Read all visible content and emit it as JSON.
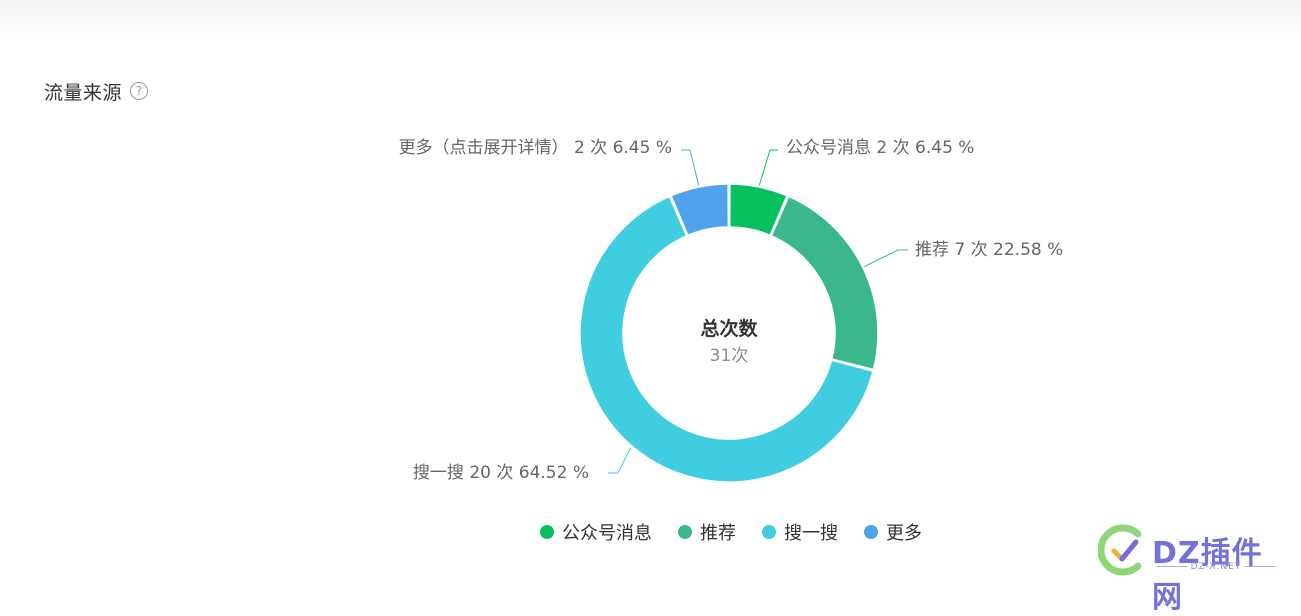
{
  "section": {
    "title": "流量来源",
    "help_icon": "question-circle-icon"
  },
  "chart_data": {
    "type": "pie",
    "donut": true,
    "center_title": "总次数",
    "center_value": "31次",
    "total": 31,
    "unit": "次",
    "slices": [
      {
        "name": "公众号消息",
        "value": 2,
        "percent": 6.45,
        "color": "#07c160",
        "label": "公众号消息 2 次 6.45 %"
      },
      {
        "name": "推荐",
        "value": 7,
        "percent": 22.58,
        "color": "#3bb78c",
        "label": "推荐 7 次 22.58 %"
      },
      {
        "name": "搜一搜",
        "value": 20,
        "percent": 64.52,
        "color": "#40cde0",
        "label": "搜一搜 20 次 64.52 %"
      },
      {
        "name": "更多",
        "value": 2,
        "percent": 6.45,
        "color": "#4fa3ec",
        "label": "更多（点击展开详情） 2 次 6.45 %"
      }
    ],
    "legend": [
      "公众号消息",
      "推荐",
      "搜一搜",
      "更多"
    ],
    "legend_placement": "bottom"
  },
  "watermark": {
    "text": "DZ插件网",
    "sub": "DZ-X.NET"
  }
}
